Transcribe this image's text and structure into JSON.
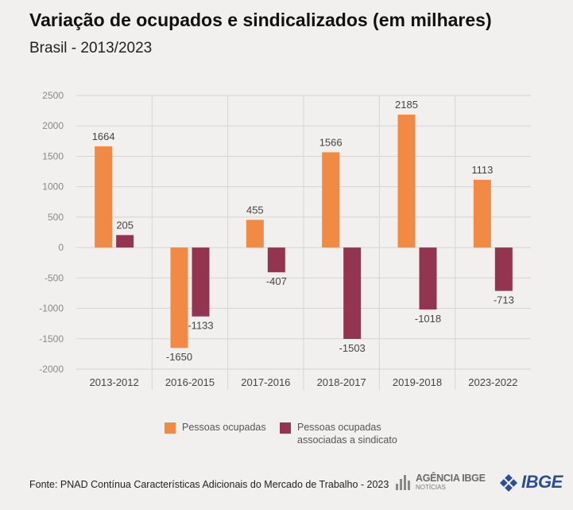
{
  "title": "Variação de ocupados e sindicalizados (em milhares)",
  "subtitle": "Brasil - 2013/2023",
  "source": "Fonte: PNAD Contínua Características Adicionais do Mercado de Trabalho - 2023",
  "logos": {
    "agencia_line1": "AGÊNCIA IBGE",
    "agencia_line2": "NOTÍCIAS",
    "ibge": "IBGE"
  },
  "colors": {
    "ocupadas": "#f08a45",
    "sindicato": "#933550",
    "grid": "#d6d4d1",
    "axis_text": "#888888"
  },
  "chart_data": {
    "type": "bar",
    "title": "Variação de ocupados e sindicalizados (em milhares)",
    "subtitle": "Brasil - 2013/2023",
    "xlabel": "",
    "ylabel": "",
    "ylim": [
      -2000,
      2500
    ],
    "yticks": [
      2500,
      2000,
      1500,
      1000,
      500,
      0,
      -500,
      -1000,
      -1500,
      -2000
    ],
    "categories": [
      "2013-2012",
      "2016-2015",
      "2017-2016",
      "2018-2017",
      "2019-2018",
      "2023-2022"
    ],
    "series": [
      {
        "name": "Pessoas ocupadas",
        "values": [
          1664,
          -1650,
          455,
          1566,
          2185,
          1113
        ]
      },
      {
        "name": "Pessoas ocupadas associadas a sindicato",
        "values": [
          205,
          -1133,
          -407,
          -1503,
          -1018,
          -713
        ]
      }
    ],
    "legend": {
      "position": "bottom",
      "items": [
        {
          "lines": [
            "Pessoas ocupadas"
          ]
        },
        {
          "lines": [
            "Pessoas ocupadas",
            "associadas a sindicato"
          ]
        }
      ]
    }
  }
}
